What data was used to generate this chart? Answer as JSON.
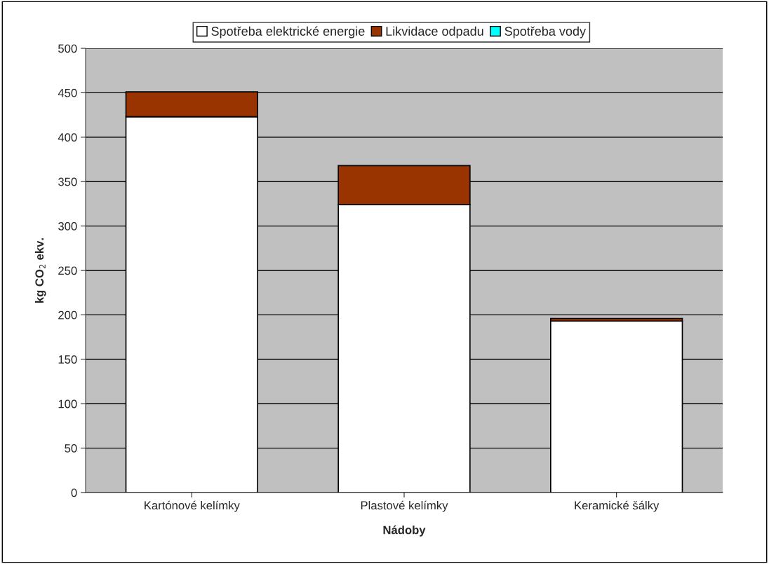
{
  "chart_data": {
    "type": "bar",
    "stacked": true,
    "xlabel": "Nádoby",
    "ylabel": "kg CO$_{2}$ ekv.",
    "categories": [
      "Kartónové kelímky",
      "Plastové kelímky",
      "Keramické šálky"
    ],
    "series": [
      {
        "name": "Spotřeba elektrické energie",
        "color": "#ffffff",
        "values": [
          423,
          324,
          193
        ]
      },
      {
        "name": "Likvidace odpadu",
        "color": "#993300",
        "values": [
          28,
          44,
          3
        ]
      },
      {
        "name": "Spotřeba vody",
        "color": "#00ffff",
        "values": [
          null,
          null,
          null
        ]
      }
    ],
    "ylim": [
      0,
      500
    ],
    "yticks": [
      0,
      50,
      100,
      150,
      200,
      250,
      300,
      350,
      400,
      450,
      500
    ],
    "grid": "y",
    "legend": "top"
  }
}
